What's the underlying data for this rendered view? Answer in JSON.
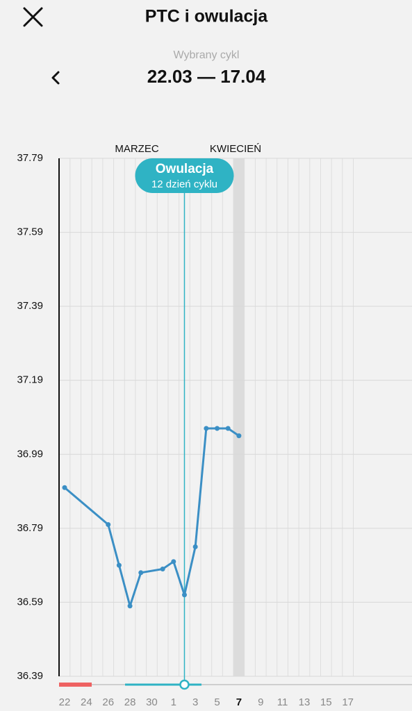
{
  "header": {
    "title": "PTC i owulacja"
  },
  "cycle": {
    "label": "Wybrany cykl",
    "range": "22.03 — 17.04"
  },
  "chart_data": {
    "type": "line",
    "month_labels": [
      "MARZEC",
      "KWIECIEŃ"
    ],
    "annotation": {
      "title": "Owulacja",
      "text": "12 dzień cyklu"
    },
    "categories": [
      "22",
      null,
      "24",
      null,
      "26",
      null,
      "28",
      null,
      "30",
      null,
      "1",
      null,
      "3",
      null,
      "5",
      null,
      "7",
      null,
      "9",
      null,
      "11",
      null,
      "13",
      null,
      "15",
      null,
      "17"
    ],
    "series": [
      {
        "color": "#3b8fc5",
        "values": [
          36.9,
          null,
          null,
          null,
          36.8,
          36.69,
          36.58,
          36.67,
          null,
          36.68,
          36.7,
          36.61,
          36.74,
          37.06,
          37.06,
          37.06,
          37.04,
          null,
          null,
          null,
          null,
          null,
          null,
          null,
          null,
          null,
          null
        ]
      }
    ],
    "ylim": [
      36.39,
      37.79
    ],
    "yticks": [
      36.39,
      36.59,
      36.79,
      36.99,
      37.19,
      37.39,
      37.59,
      37.79
    ],
    "grid": true
  }
}
